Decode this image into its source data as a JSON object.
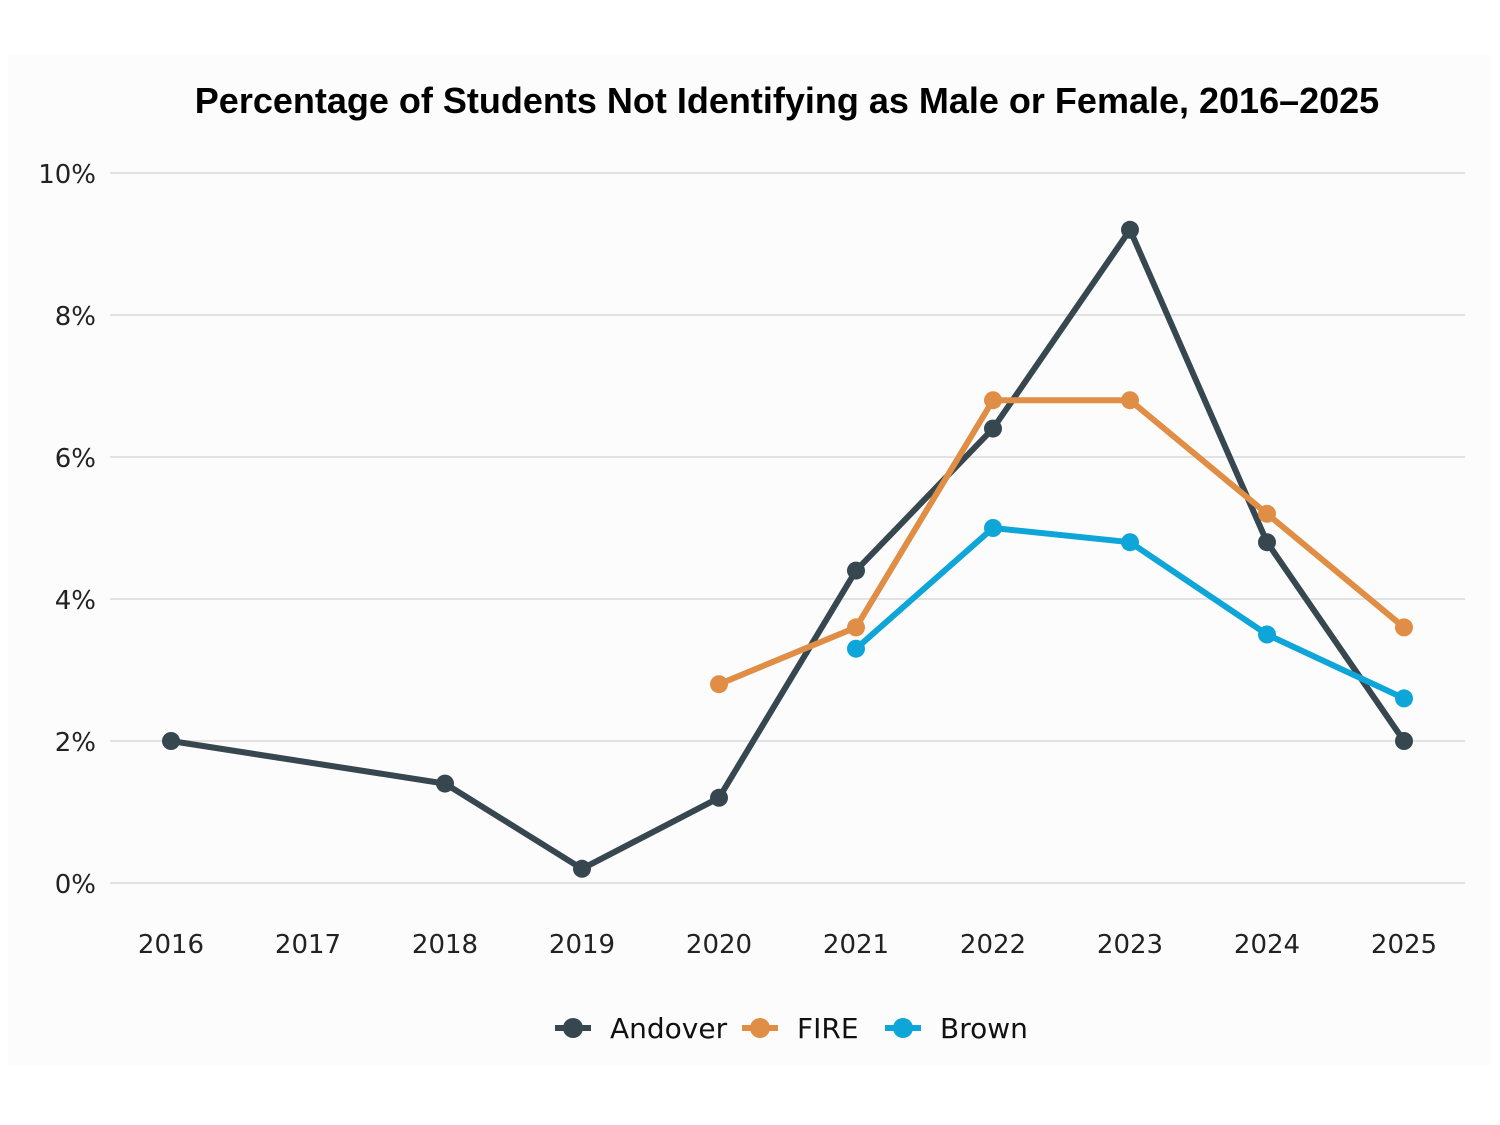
{
  "chart_data": {
    "type": "line",
    "title": "Percentage of Students Not Identifying as Male or Female, 2016–2025",
    "xlabel": "",
    "ylabel": "",
    "categories": [
      "2016",
      "2017",
      "2018",
      "2019",
      "2020",
      "2021",
      "2022",
      "2023",
      "2024",
      "2025"
    ],
    "ylim": [
      0,
      10
    ],
    "yticks": [
      "0%",
      "2%",
      "4%",
      "6%",
      "8%",
      "10%"
    ],
    "grid": "horizontal",
    "legend": "bottom",
    "series": [
      {
        "name": "Andover",
        "color": "#37474f",
        "values": [
          2.0,
          null,
          1.4,
          0.2,
          1.2,
          4.4,
          6.4,
          9.2,
          4.8,
          2.0
        ]
      },
      {
        "name": "FIRE",
        "color": "#e08e45",
        "values": [
          null,
          null,
          null,
          null,
          2.8,
          3.6,
          6.8,
          6.8,
          5.2,
          3.6
        ]
      },
      {
        "name": "Brown",
        "color": "#0ea5d8",
        "values": [
          null,
          null,
          null,
          null,
          null,
          3.3,
          5.0,
          4.8,
          3.5,
          2.6
        ]
      }
    ]
  }
}
